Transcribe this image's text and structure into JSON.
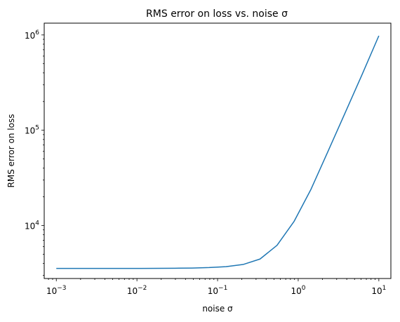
{
  "chart_data": {
    "type": "line",
    "title": "RMS error on loss vs. noise σ",
    "xlabel": "noise σ",
    "ylabel": "RMS error on loss",
    "xscale": "log",
    "yscale": "log",
    "xlim": [
      0.000708,
      14.1
    ],
    "ylim": [
      2780,
      1330000
    ],
    "grid": false,
    "x_ticks": [
      {
        "value": 0.001,
        "base": "10",
        "exp": "−3"
      },
      {
        "value": 0.01,
        "base": "10",
        "exp": "−2"
      },
      {
        "value": 0.1,
        "base": "10",
        "exp": "−1"
      },
      {
        "value": 1,
        "base": "10",
        "exp": "0"
      },
      {
        "value": 10,
        "base": "10",
        "exp": "1"
      }
    ],
    "y_ticks": [
      {
        "value": 10000,
        "base": "10",
        "exp": "4"
      },
      {
        "value": 100000,
        "base": "10",
        "exp": "5"
      },
      {
        "value": 1000000,
        "base": "10",
        "exp": "6"
      }
    ],
    "series": [
      {
        "color": "#1f77b4",
        "x": [
          0.001,
          0.00162,
          0.00264,
          0.00428,
          0.00695,
          0.0113,
          0.0183,
          0.0298,
          0.0483,
          0.0785,
          0.127,
          0.207,
          0.336,
          0.546,
          0.886,
          1.44,
          2.34,
          3.79,
          6.16,
          10.0
        ],
        "y": [
          3550,
          3550,
          3550,
          3550,
          3550,
          3550,
          3555,
          3565,
          3580,
          3620,
          3700,
          3900,
          4450,
          6200,
          11000,
          24000,
          60000,
          150000,
          380000,
          980000
        ]
      }
    ]
  }
}
